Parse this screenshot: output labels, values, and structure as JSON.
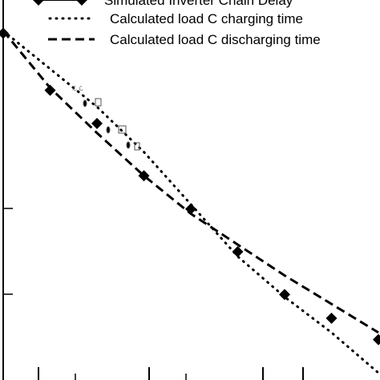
{
  "chart_data": {
    "type": "scatter",
    "title": "",
    "xlabel": "",
    "ylabel": "",
    "xlim": [
      0,
      8
    ],
    "ylim": [
      0,
      8
    ],
    "legend_position": "top",
    "grid": false,
    "series": [
      {
        "name": "Simulated Inverter Chain Delay",
        "style": "diamond-markers",
        "color": "#000000",
        "x": [
          0.0,
          1.0,
          2.0,
          3.0,
          4.0,
          5.0,
          6.0,
          7.0,
          8.0
        ],
        "y": [
          7.3,
          6.1,
          5.4,
          4.3,
          3.6,
          2.7,
          1.8,
          1.3,
          0.85
        ]
      },
      {
        "name": "Calculated load C charging time",
        "style": "dotted-line",
        "color": "#000000",
        "x": [
          0.0,
          1.0,
          2.0,
          3.0,
          4.0,
          5.0,
          6.0,
          7.0,
          8.0
        ],
        "y": [
          7.35,
          6.55,
          5.75,
          4.8,
          3.7,
          2.6,
          1.75,
          1.0,
          0.15
        ]
      },
      {
        "name": "Calculated load C discharging time",
        "style": "dashed-line",
        "color": "#000000",
        "x": [
          0.0,
          1.0,
          2.0,
          3.0,
          4.0,
          5.0,
          6.0,
          7.0,
          8.0
        ],
        "y": [
          7.35,
          6.15,
          5.2,
          4.3,
          3.5,
          2.85,
          2.2,
          1.6,
          1.0
        ]
      }
    ]
  }
}
